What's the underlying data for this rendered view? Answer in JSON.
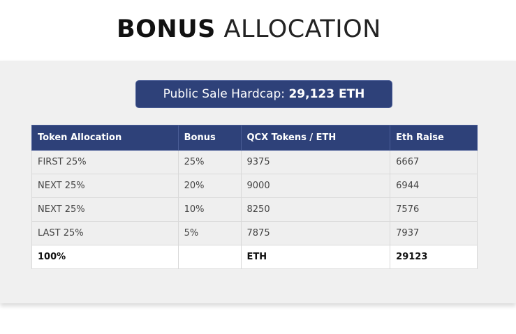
{
  "title": {
    "bold": "BONUS",
    "light": "ALLOCATION"
  },
  "hardcap": {
    "label": "Public Sale Hardcap:",
    "value": "29,123 ETH"
  },
  "table": {
    "headers": [
      "Token Allocation",
      "Bonus",
      "QCX Tokens / ETH",
      "Eth Raise"
    ],
    "rows": [
      [
        "FIRST 25%",
        "25%",
        "9375",
        "6667"
      ],
      [
        "NEXT 25%",
        "20%",
        "9000",
        "6944"
      ],
      [
        "NEXT 25%",
        "10%",
        "8250",
        "7576"
      ],
      [
        "LAST 25%",
        "5%",
        "7875",
        "7937"
      ]
    ],
    "total": [
      "100%",
      "",
      "ETH",
      "29123"
    ]
  },
  "colors": {
    "header_bg": "#2e4179",
    "panel_bg": "#f0f0f0"
  }
}
